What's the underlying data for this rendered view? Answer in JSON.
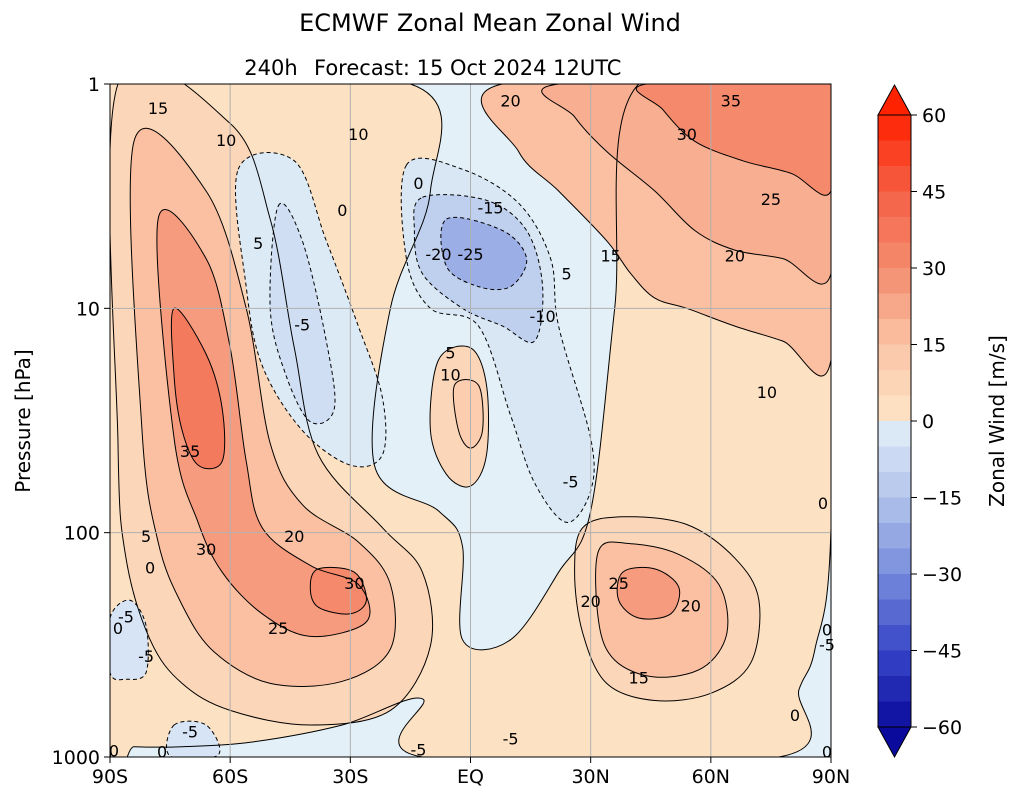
{
  "chart_data": {
    "type": "contour",
    "title": "ECMWF Zonal Mean Zonal Wind",
    "subtitle_left": "240h",
    "subtitle_main": "Forecast:  15 Oct 2024  12UTC",
    "ylabel": "Pressure [hPa]",
    "x_ticks": [
      "90S",
      "60S",
      "30S",
      "EQ",
      "30N",
      "60N",
      "90N"
    ],
    "x_tick_values": [
      -90,
      -60,
      -30,
      0,
      30,
      60,
      90
    ],
    "xlim": [
      -90,
      90
    ],
    "y_ticks": [
      "1",
      "10",
      "100",
      "1000"
    ],
    "y_tick_values": [
      1,
      10,
      100,
      1000
    ],
    "ylim": [
      1000,
      1
    ],
    "y_scale": "log",
    "grid": true,
    "colorbar": {
      "label": "Zonal Wind [m/s]",
      "ticks": [
        "60",
        "45",
        "30",
        "15",
        "0",
        "−15",
        "−30",
        "−45",
        "−60"
      ],
      "tick_values": [
        60,
        45,
        30,
        15,
        0,
        -15,
        -30,
        -45,
        -60
      ],
      "range": [
        -60,
        60
      ],
      "level_step": 5,
      "extend": "both",
      "colormap": "blue-white-red",
      "colors": {
        "min": "#0a0a9c",
        "zero_neg": "#e3f0f8",
        "zero_pos": "#fde6c8",
        "max": "#ff2200"
      }
    },
    "contour_labels": [
      {
        "text": "15",
        "lat": -78,
        "p": 1.3
      },
      {
        "text": "10",
        "lat": -61,
        "p": 1.8
      },
      {
        "text": "5",
        "lat": -53,
        "p": 5.2
      },
      {
        "text": "35",
        "lat": -70,
        "p": 44
      },
      {
        "text": "30",
        "lat": -66,
        "p": 120
      },
      {
        "text": "20",
        "lat": -44,
        "p": 105
      },
      {
        "text": "5",
        "lat": -81,
        "p": 105
      },
      {
        "text": "0",
        "lat": -80,
        "p": 145
      },
      {
        "text": "25",
        "lat": -48,
        "p": 270
      },
      {
        "text": "30",
        "lat": -29,
        "p": 170
      },
      {
        "text": "0",
        "lat": -88,
        "p": 270
      },
      {
        "text": "-5",
        "lat": -86,
        "p": 240
      },
      {
        "text": "-5",
        "lat": -81,
        "p": 360
      },
      {
        "text": "0",
        "lat": -89,
        "p": 950
      },
      {
        "text": "0",
        "lat": -77,
        "p": 960
      },
      {
        "text": "-5",
        "lat": -70,
        "p": 780
      },
      {
        "text": "10",
        "lat": -28,
        "p": 1.7
      },
      {
        "text": "0",
        "lat": -32,
        "p": 3.7
      },
      {
        "text": "-5",
        "lat": -42,
        "p": 12
      },
      {
        "text": "0",
        "lat": -13,
        "p": 2.8
      },
      {
        "text": "-15",
        "lat": 5,
        "p": 3.6
      },
      {
        "text": "-20",
        "lat": -8,
        "p": 5.8
      },
      {
        "text": "-25",
        "lat": 0,
        "p": 5.8
      },
      {
        "text": "-10",
        "lat": 18,
        "p": 11
      },
      {
        "text": "5",
        "lat": 24,
        "p": 7.1
      },
      {
        "text": "5",
        "lat": -5,
        "p": 16
      },
      {
        "text": "10",
        "lat": -5,
        "p": 20
      },
      {
        "text": "-5",
        "lat": 25,
        "p": 60
      },
      {
        "text": "20",
        "lat": 10,
        "p": 1.2
      },
      {
        "text": "30",
        "lat": 54,
        "p": 1.7
      },
      {
        "text": "35",
        "lat": 65,
        "p": 1.2
      },
      {
        "text": "25",
        "lat": 75,
        "p": 3.3
      },
      {
        "text": "15",
        "lat": 35,
        "p": 5.9
      },
      {
        "text": "20",
        "lat": 66,
        "p": 5.9
      },
      {
        "text": "10",
        "lat": 74,
        "p": 24
      },
      {
        "text": "0",
        "lat": 88,
        "p": 75
      },
      {
        "text": "25",
        "lat": 37,
        "p": 170
      },
      {
        "text": "20",
        "lat": 30,
        "p": 205
      },
      {
        "text": "20",
        "lat": 55,
        "p": 215
      },
      {
        "text": "15",
        "lat": 42,
        "p": 450
      },
      {
        "text": "0",
        "lat": 81,
        "p": 660
      },
      {
        "text": "0",
        "lat": 89,
        "p": 275
      },
      {
        "text": "-5",
        "lat": 89,
        "p": 320
      },
      {
        "text": "0",
        "lat": 89,
        "p": 960
      },
      {
        "text": "-5",
        "lat": 10,
        "p": 840
      },
      {
        "text": "-5",
        "lat": -13,
        "p": 940
      }
    ]
  }
}
